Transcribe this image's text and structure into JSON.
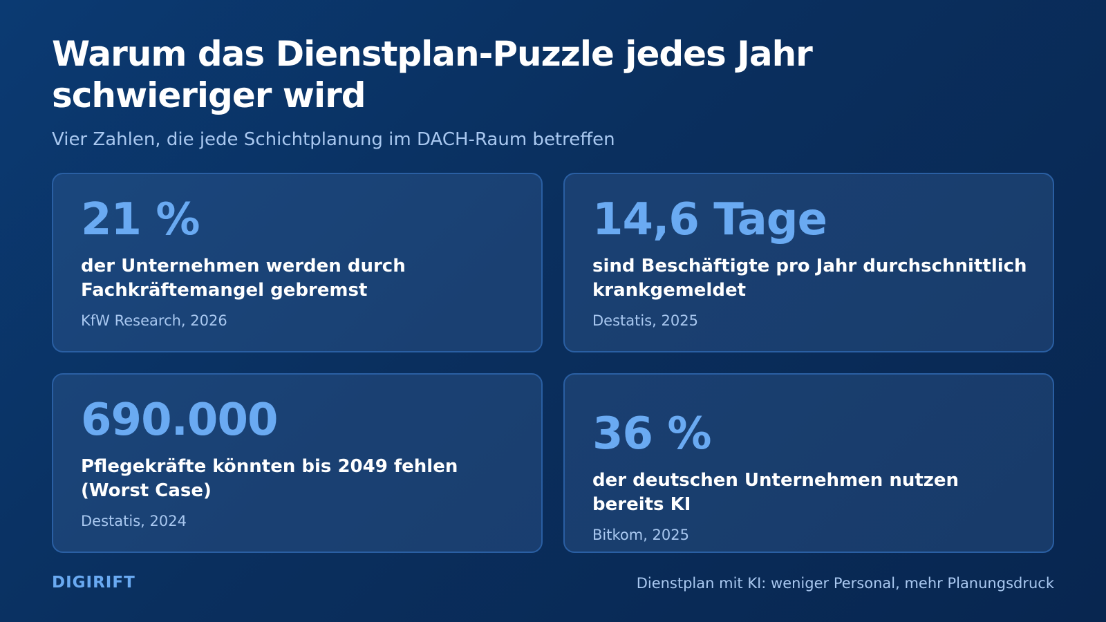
{
  "header": {
    "title": "Warum das Dienstplan-Puzzle jedes Jahr schwieriger wird",
    "subtitle": "Vier Zahlen, die jede Schichtplanung im DACH-Raum betreffen"
  },
  "cards": [
    {
      "stat": "21 %",
      "description": "der Unternehmen werden durch Fachkräftemangel gebremst",
      "source": "KfW Research, 2026"
    },
    {
      "stat": "14,6 Tage",
      "description": "sind Beschäftigte pro Jahr durchschnittlich krankgemeldet",
      "source": "Destatis, 2025"
    },
    {
      "stat": "690.000",
      "description": "Pflegekräfte könnten bis 2049 fehlen (Worst Case)",
      "source": "Destatis, 2024"
    },
    {
      "stat": "36 %",
      "description": "der deutschen Unternehmen nutzen bereits KI",
      "source": "Bitkom, 2025"
    }
  ],
  "footer": {
    "brand": "DIGIRIFT",
    "tagline": "Dienstplan mit KI: weniger Personal, mehr Planungsdruck"
  },
  "colors": {
    "background": "#0a2f5e",
    "accent": "#6aaaf2",
    "muted_text": "#a9c8f0",
    "card_border": "#2a5fa3"
  }
}
